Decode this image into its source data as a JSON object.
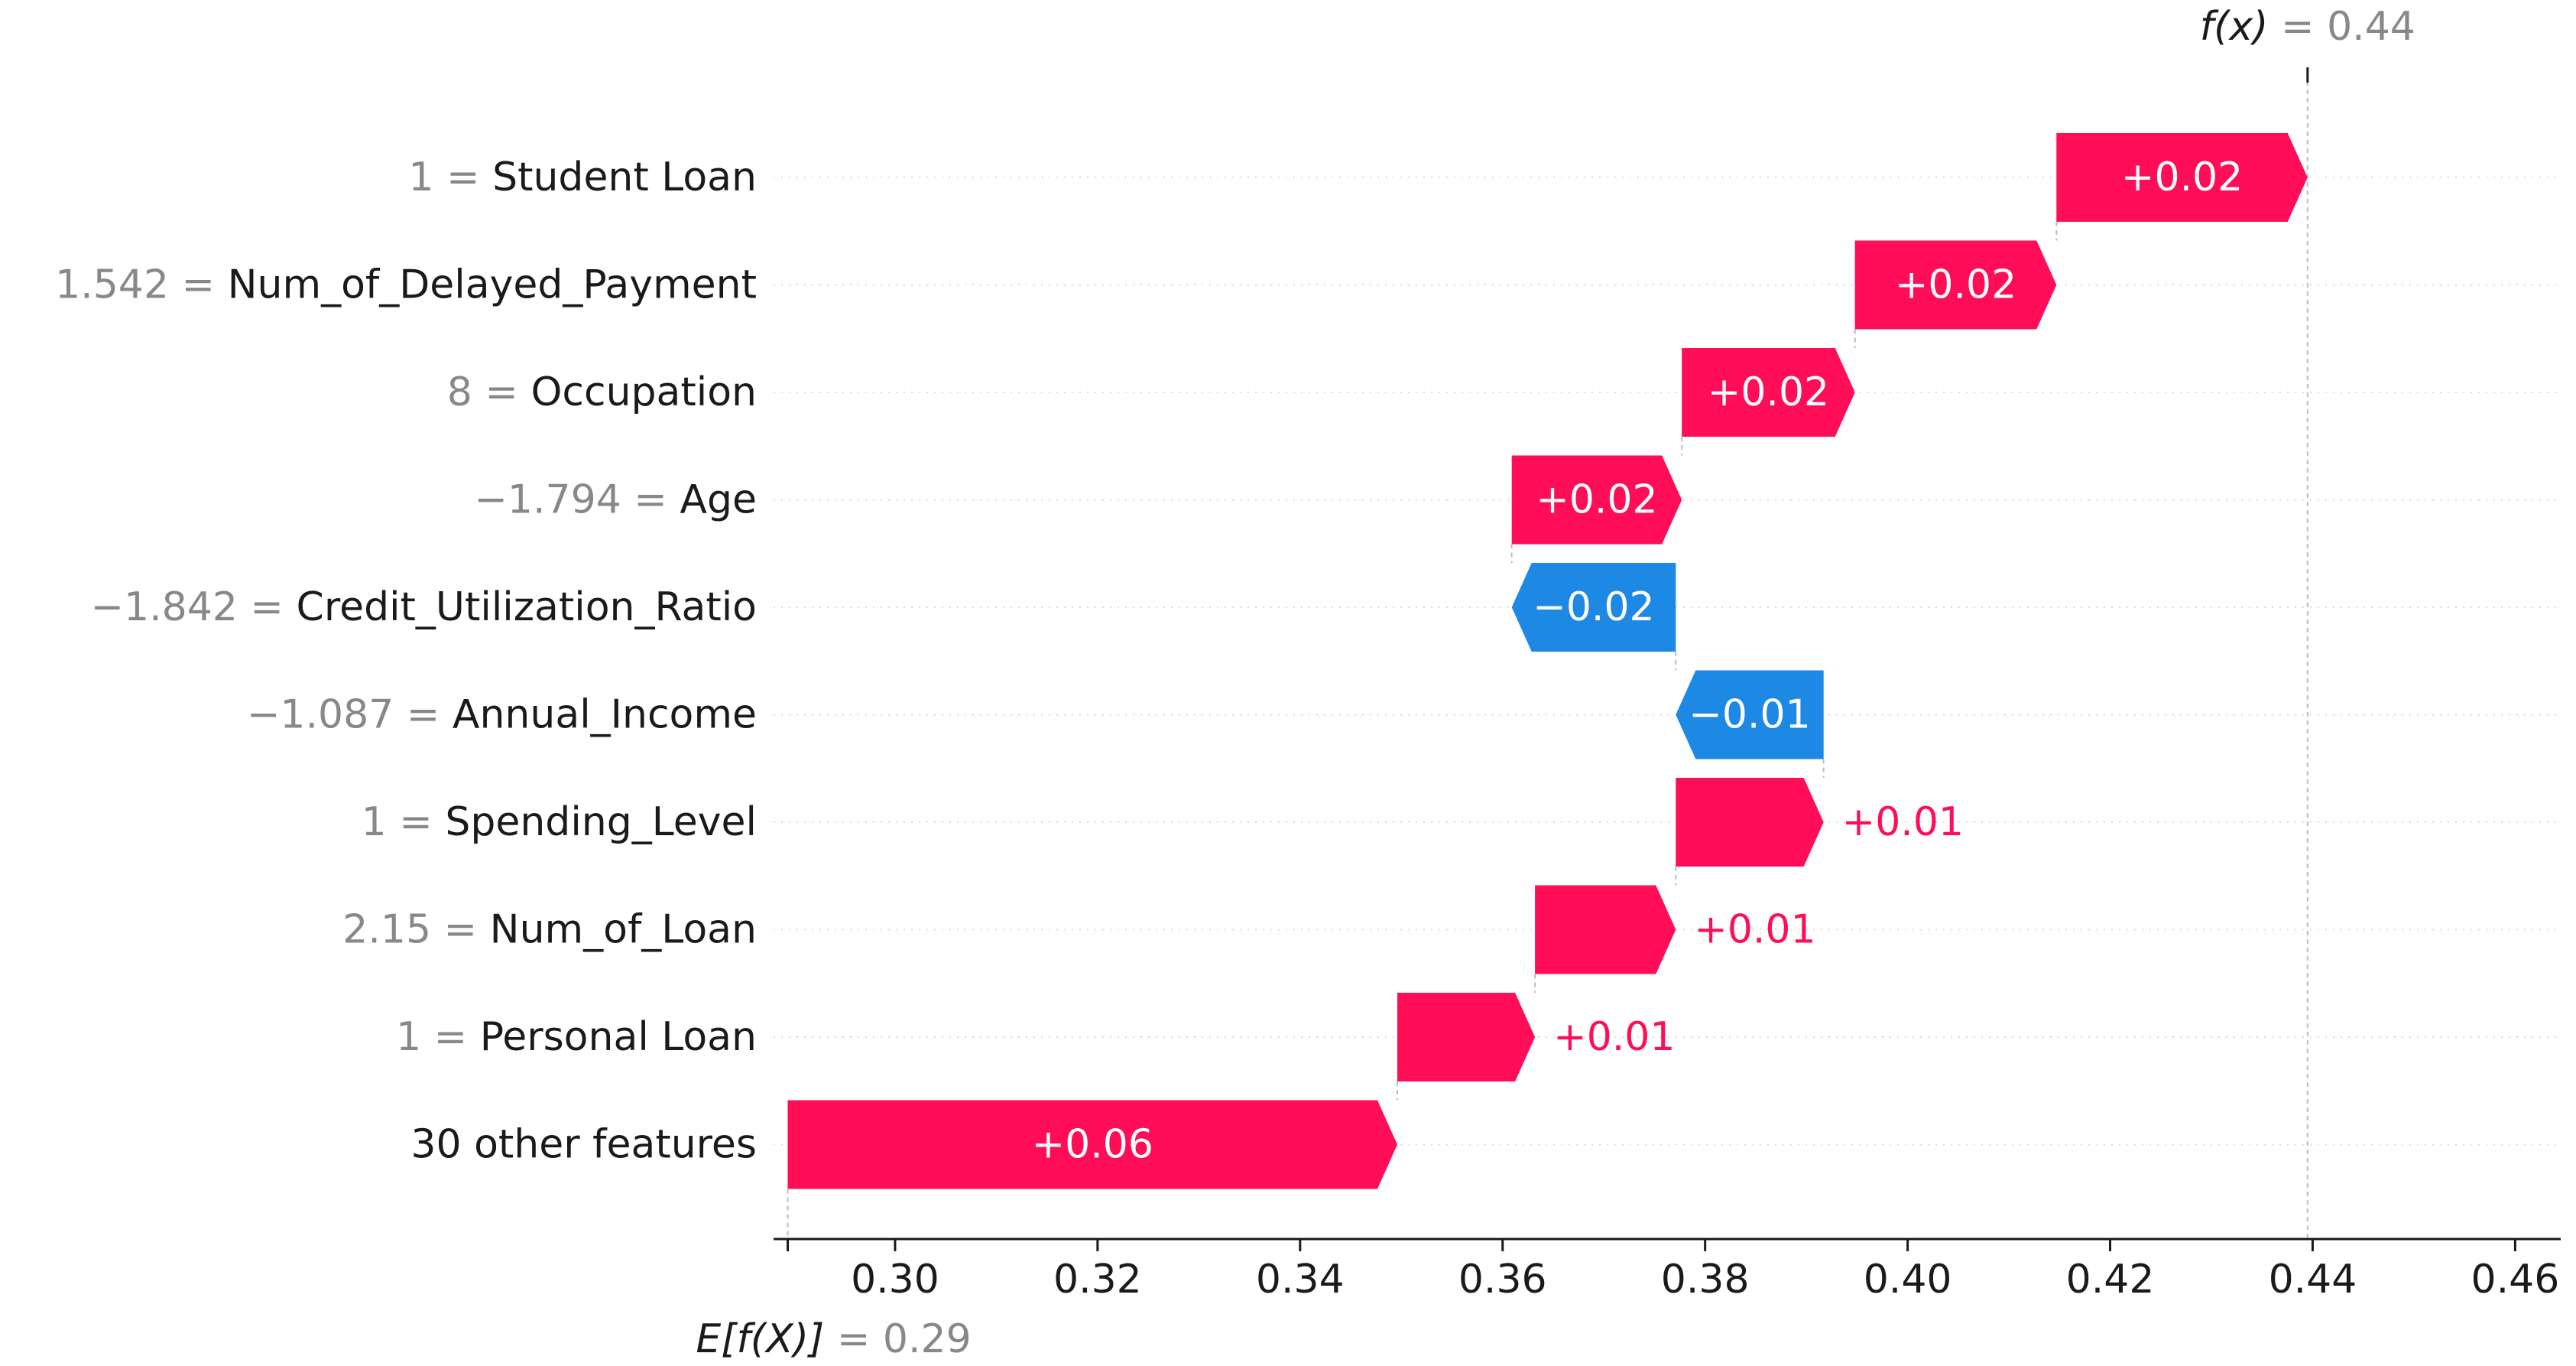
{
  "chart_data": {
    "type": "waterfall",
    "title": "",
    "xlabel": "",
    "ylabel": "",
    "xlim": [
      0.288,
      0.4645
    ],
    "x_ticks": [
      0.3,
      0.32,
      0.34,
      0.36,
      0.38,
      0.4,
      0.42,
      0.44,
      0.46
    ],
    "x_tick_labels": [
      "0.30",
      "0.32",
      "0.34",
      "0.36",
      "0.38",
      "0.40",
      "0.42",
      "0.44",
      "0.46"
    ],
    "expected_value": {
      "label": "E[f(X)]",
      "value": 0.2894,
      "value_text": "= 0.29"
    },
    "output_value": {
      "label": "f(x)",
      "value": 0.4395,
      "value_text": "= 0.44"
    },
    "colors": {
      "positive": "#ff0d57",
      "negative": "#1e88e5",
      "label_value": "#888888",
      "grid": "#cccccc"
    },
    "features": [
      {
        "value_text": "1",
        "name": "Student Loan",
        "start": 0.4147,
        "end": 0.4395,
        "label": "+0.02",
        "label_inside": true
      },
      {
        "value_text": "1.542",
        "name": "Num_of_Delayed_Payment",
        "start": 0.3948,
        "end": 0.4147,
        "label": "+0.02",
        "label_inside": true
      },
      {
        "value_text": "8",
        "name": "Occupation",
        "start": 0.3777,
        "end": 0.3948,
        "label": "+0.02",
        "label_inside": true
      },
      {
        "value_text": "−1.794",
        "name": "Age",
        "start": 0.3609,
        "end": 0.3777,
        "label": "+0.02",
        "label_inside": true
      },
      {
        "value_text": "−1.842",
        "name": "Credit_Utilization_Ratio",
        "start": 0.3771,
        "end": 0.3609,
        "label": "−0.02",
        "label_inside": true
      },
      {
        "value_text": "−1.087",
        "name": "Annual_Income",
        "start": 0.3917,
        "end": 0.3771,
        "label": "−0.01",
        "label_inside": true
      },
      {
        "value_text": "1",
        "name": "Spending_Level",
        "start": 0.3771,
        "end": 0.3917,
        "label": "+0.01",
        "label_inside": false
      },
      {
        "value_text": "2.15",
        "name": "Num_of_Loan",
        "start": 0.3632,
        "end": 0.3771,
        "label": "+0.01",
        "label_inside": false
      },
      {
        "value_text": "1",
        "name": "Personal Loan",
        "start": 0.3496,
        "end": 0.3632,
        "label": "+0.01",
        "label_inside": false
      },
      {
        "value_text": "",
        "name": "30 other features",
        "start": 0.2894,
        "end": 0.3496,
        "label": "+0.06",
        "label_inside": true
      }
    ]
  }
}
